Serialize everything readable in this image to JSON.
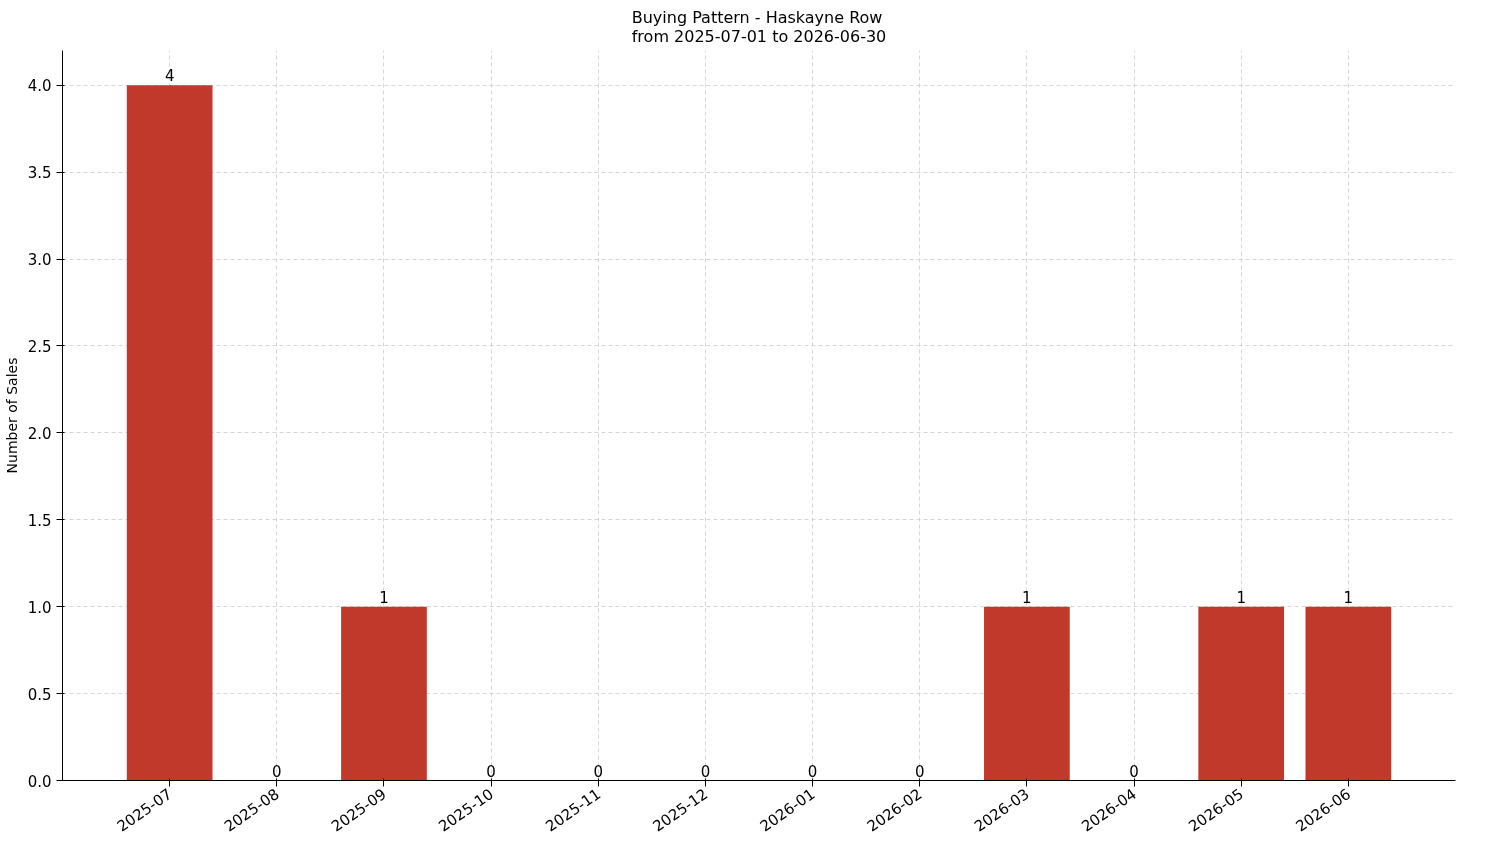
{
  "chart_data": {
    "type": "bar",
    "title": "Buying Pattern - Haskayne Row",
    "subtitle": "from 2025-07-01 to 2026-06-30",
    "ylabel": "Number of Sales",
    "categories": [
      "2025-07",
      "2025-08",
      "2025-09",
      "2025-10",
      "2025-11",
      "2025-12",
      "2026-01",
      "2026-02",
      "2026-03",
      "2026-04",
      "2026-05",
      "2026-06"
    ],
    "values": [
      4,
      0,
      1,
      0,
      0,
      0,
      0,
      0,
      1,
      0,
      1,
      1
    ],
    "color": "#c0392b",
    "ylim": [
      0,
      4.2
    ],
    "yticks": [
      {
        "value": 0,
        "label": "0.0"
      },
      {
        "value": 0.5,
        "label": "0.5"
      },
      {
        "value": 1,
        "label": "1.0"
      },
      {
        "value": 1.5,
        "label": "1.5"
      },
      {
        "value": 2,
        "label": "2.0"
      },
      {
        "value": 2.5,
        "label": "2.5"
      },
      {
        "value": 3,
        "label": "3.0"
      },
      {
        "value": 3.5,
        "label": "3.5"
      },
      {
        "value": 4,
        "label": "4.0"
      }
    ],
    "grid": true,
    "data_labels": true
  }
}
